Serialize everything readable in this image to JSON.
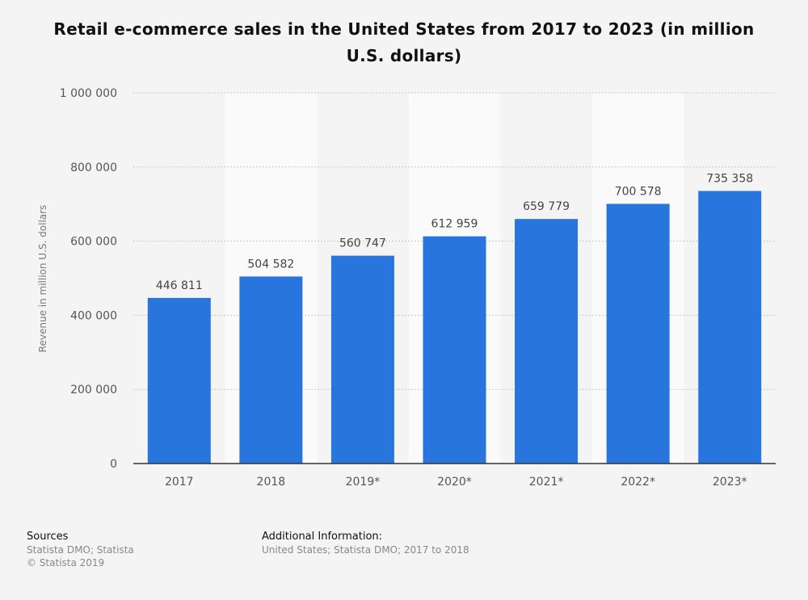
{
  "chart_data": {
    "type": "bar",
    "title": "Retail e-commerce sales in the United States from 2017 to 2023 (in million U.S. dollars)",
    "categories": [
      "2017",
      "2018",
      "2019*",
      "2020*",
      "2021*",
      "2022*",
      "2023*"
    ],
    "values": [
      446811,
      504582,
      560747,
      612959,
      659779,
      700578,
      735358
    ],
    "data_labels": [
      "446 811",
      "504 582",
      "560 747",
      "612 959",
      "659 779",
      "700 578",
      "735 358"
    ],
    "ylabel": "Revenue in million U.S. dollars",
    "xlabel": "",
    "ylim": [
      0,
      1000000
    ],
    "yticks": [
      0,
      200000,
      400000,
      600000,
      800000,
      1000000
    ],
    "ytick_labels": [
      "0",
      "200 000",
      "400 000",
      "600 000",
      "800 000",
      "1 000 000"
    ],
    "grid": true,
    "bar_color": "#2876dd"
  },
  "footer": {
    "sources_heading": "Sources",
    "sources_line1": "Statista DMO; Statista",
    "sources_line2": "© Statista 2019",
    "additional_heading": "Additional Information:",
    "additional_text": "United States; Statista DMO; 2017 to 2018"
  }
}
